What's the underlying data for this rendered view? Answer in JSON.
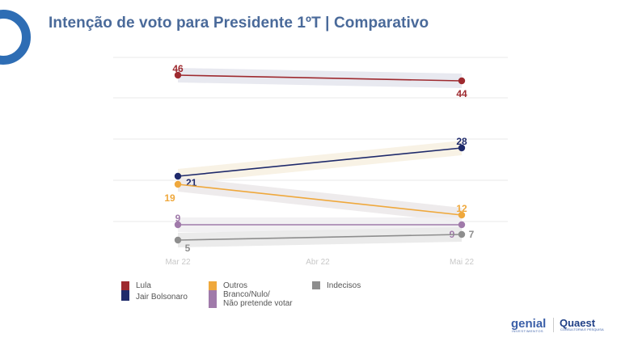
{
  "title": "Intenção de voto para Presidente 1ºT | Comparativo",
  "brands": {
    "left": "genial",
    "left_sub": "INVESTIMENTOS",
    "right": "Quaest",
    "right_sub": "CONSULTORIA E PESQUISA"
  },
  "chart_data": {
    "type": "line",
    "title": "Intenção de voto para Presidente 1ºT | Comparativo",
    "x": [
      "Mar 22",
      "Abr 22",
      "Mai 22"
    ],
    "xlabel": "",
    "ylabel": "",
    "grid": true,
    "legend_position": "bottom-left",
    "series": [
      {
        "name": "Lula",
        "color": "#9e2a2f",
        "band": "#e6e7ee",
        "points": [
          {
            "x": "Mar 22",
            "y": 46
          },
          {
            "x": "Mai 22",
            "y": 44
          }
        ]
      },
      {
        "name": "Jair Bolsonaro",
        "color": "#1f2a6b",
        "band": "#f7f1e2",
        "points": [
          {
            "x": "Mar 22",
            "y": 21
          },
          {
            "x": "Mai 22",
            "y": 28
          }
        ]
      },
      {
        "name": "Outros",
        "color": "#efa83c",
        "band": "#ece9ea",
        "points": [
          {
            "x": "Mar 22",
            "y": 19
          },
          {
            "x": "Mai 22",
            "y": 12
          }
        ]
      },
      {
        "name": "Branco/Nulo/ Não pretende votar",
        "color": "#a07aaa",
        "band": "#f1f0f2",
        "points": [
          {
            "x": "Mar 22",
            "y": 9
          },
          {
            "x": "Mai 22",
            "y": 9
          }
        ]
      },
      {
        "name": "Indecisos",
        "color": "#8e8e8e",
        "band": "#e9e9e9",
        "points": [
          {
            "x": "Mar 22",
            "y": 5
          },
          {
            "x": "Mai 22",
            "y": 7
          }
        ]
      }
    ]
  },
  "legend": {
    "col1": [
      {
        "label": "Lula",
        "color": "#9e2a2f"
      },
      {
        "label": "Jair Bolsonaro",
        "color": "#1f2a6b"
      }
    ],
    "col2": [
      {
        "label": "Outros",
        "color": "#efa83c"
      },
      {
        "label": "Branco/Nulo/\nNão pretende votar",
        "color": "#a07aaa"
      }
    ],
    "col3": [
      {
        "label": "Indecisos",
        "color": "#8e8e8e"
      }
    ]
  }
}
